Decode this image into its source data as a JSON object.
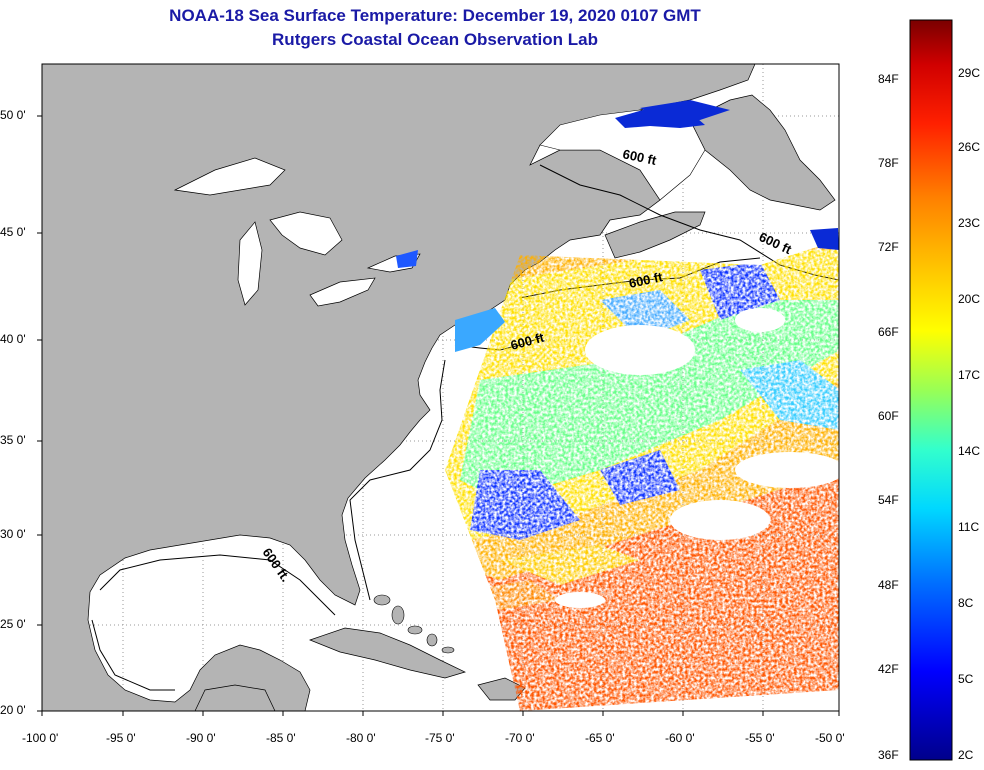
{
  "title": {
    "line1": "NOAA-18 Sea Surface Temperature:  December 19, 2020 0107 GMT",
    "line2": "Rutgers Coastal Ocean Observation Lab"
  },
  "axes": {
    "longitude_labels": [
      "-100 0'",
      "-95 0'",
      "-90 0'",
      "-85 0'",
      "-80 0'",
      "-75 0'",
      "-70 0'",
      "-65 0'",
      "-60 0'",
      "-55 0'",
      "-50 0'"
    ],
    "latitude_labels": [
      "50 0'",
      "45 0'",
      "40 0'",
      "35 0'",
      "30 0'",
      "25 0'",
      "20 0'"
    ],
    "lon_range": [
      -100,
      -50
    ],
    "lat_range": [
      20,
      52
    ]
  },
  "contours": {
    "label": "600 ft",
    "label_variant": "600 ft."
  },
  "colorbar": {
    "fahrenheit_labels": [
      "84F",
      "78F",
      "72F",
      "66F",
      "60F",
      "54F",
      "48F",
      "42F",
      "36F"
    ],
    "celsius_labels": [
      "29C",
      "26C",
      "23C",
      "20C",
      "17C",
      "14C",
      "11C",
      "8C",
      "5C",
      "2C"
    ],
    "colors": [
      "#00008b",
      "#0000ff",
      "#0066ff",
      "#00ccff",
      "#33ffcc",
      "#99ff66",
      "#ffff00",
      "#ffcc00",
      "#ff8800",
      "#ff3300",
      "#dd0000",
      "#8b0000"
    ]
  },
  "colors": {
    "land": "#b4b4b4",
    "water": "#ffffff",
    "title": "#1a1aa6"
  }
}
